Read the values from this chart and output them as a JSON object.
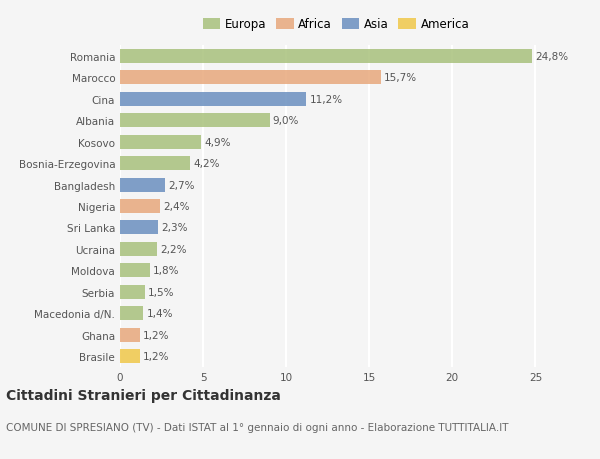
{
  "categories": [
    "Romania",
    "Marocco",
    "Cina",
    "Albania",
    "Kosovo",
    "Bosnia-Erzegovina",
    "Bangladesh",
    "Nigeria",
    "Sri Lanka",
    "Ucraina",
    "Moldova",
    "Serbia",
    "Macedonia d/N.",
    "Ghana",
    "Brasile"
  ],
  "values": [
    24.8,
    15.7,
    11.2,
    9.0,
    4.9,
    4.2,
    2.7,
    2.4,
    2.3,
    2.2,
    1.8,
    1.5,
    1.4,
    1.2,
    1.2
  ],
  "labels": [
    "24,8%",
    "15,7%",
    "11,2%",
    "9,0%",
    "4,9%",
    "4,2%",
    "2,7%",
    "2,4%",
    "2,3%",
    "2,2%",
    "1,8%",
    "1,5%",
    "1,4%",
    "1,2%",
    "1,2%"
  ],
  "continents": [
    "Europa",
    "Africa",
    "Asia",
    "Europa",
    "Europa",
    "Europa",
    "Asia",
    "Africa",
    "Asia",
    "Europa",
    "Europa",
    "Europa",
    "Europa",
    "Africa",
    "America"
  ],
  "colors": {
    "Europa": "#a8c17c",
    "Africa": "#e8a87c",
    "Asia": "#6a8fbf",
    "America": "#f0c84a"
  },
  "background_color": "#f5f5f5",
  "title": "Cittadini Stranieri per Cittadinanza",
  "subtitle": "COMUNE DI SPRESIANO (TV) - Dati ISTAT al 1° gennaio di ogni anno - Elaborazione TUTTITALIA.IT",
  "xlim": [
    0,
    26
  ],
  "xticks": [
    0,
    5,
    10,
    15,
    20,
    25
  ],
  "bar_height": 0.65,
  "label_fontsize": 7.5,
  "tick_fontsize": 7.5,
  "title_fontsize": 10,
  "subtitle_fontsize": 7.5,
  "legend_fontsize": 8.5
}
